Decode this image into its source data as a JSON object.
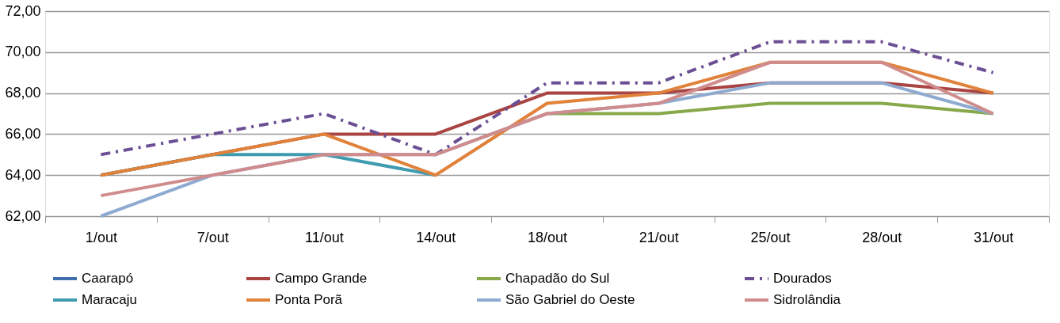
{
  "chart_data": {
    "type": "line",
    "categories": [
      "1/out",
      "7/out",
      "11/out",
      "14/out",
      "18/out",
      "21/out",
      "25/out",
      "28/out",
      "31/out"
    ],
    "ylim": [
      62,
      72
    ],
    "yticks": [
      {
        "value": 62,
        "label": "62,00"
      },
      {
        "value": 64,
        "label": "64,00"
      },
      {
        "value": 66,
        "label": "66,00"
      },
      {
        "value": 68,
        "label": "68,00"
      },
      {
        "value": 70,
        "label": "70,00"
      },
      {
        "value": 72,
        "label": "72,00"
      }
    ],
    "grid": "y",
    "legend": "bottom",
    "marker": "none",
    "series": [
      {
        "name": "Caarapó",
        "color": "#3f6fac",
        "values": [
          null,
          null,
          null,
          null,
          null,
          null,
          null,
          null,
          null
        ]
      },
      {
        "name": "Campo Grande",
        "color": "#a94442",
        "values": [
          64,
          65,
          66,
          66,
          68,
          68,
          68.5,
          68.5,
          68
        ]
      },
      {
        "name": "Chapadão do Sul",
        "color": "#87a94a",
        "values": [
          null,
          null,
          null,
          null,
          67,
          67,
          67.5,
          67.5,
          67
        ]
      },
      {
        "name": "Dourados",
        "color": "#6b4f94",
        "line_style": "dashed",
        "values": [
          65,
          66,
          67,
          65,
          68.5,
          68.5,
          70.5,
          70.5,
          69
        ]
      },
      {
        "name": "Maracaju",
        "color": "#3e9bb0",
        "values": [
          64,
          65,
          65,
          64,
          null,
          null,
          null,
          null,
          null
        ]
      },
      {
        "name": "Ponta Porã",
        "color": "#e0823a",
        "values": [
          64,
          65,
          66,
          64,
          67.5,
          68,
          69.5,
          69.5,
          68
        ]
      },
      {
        "name": "São Gabriel do Oeste",
        "color": "#8eaad0",
        "values": [
          62,
          64,
          65,
          65,
          67,
          67.5,
          68.5,
          68.5,
          67
        ]
      },
      {
        "name": "Sidrolândia",
        "color": "#d08c8c",
        "values": [
          63,
          64,
          65,
          65,
          67,
          67.5,
          69.5,
          69.5,
          67
        ]
      }
    ]
  }
}
